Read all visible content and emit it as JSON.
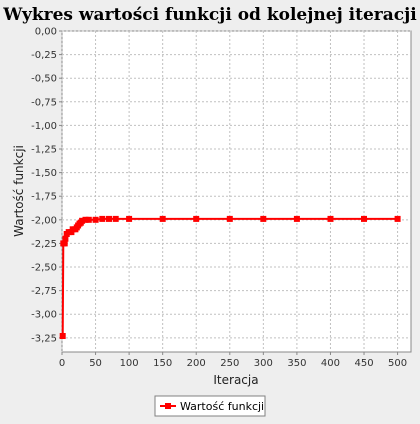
{
  "chart_data": {
    "type": "line",
    "title": "Wykres wartości funkcji od kolejnej iteracji",
    "xlabel": "Iteracja",
    "ylabel": "Wartość funkcji",
    "xlim": [
      0,
      520
    ],
    "ylim": [
      -3.4,
      0
    ],
    "x_ticks": [
      "0",
      "50",
      "100",
      "150",
      "200",
      "250",
      "300",
      "350",
      "400",
      "450",
      "500"
    ],
    "y_ticks": [
      "0,00",
      "-0,25",
      "-0,50",
      "-0,75",
      "-1,00",
      "-1,25",
      "-1,50",
      "-1,75",
      "-2,00",
      "-2,25",
      "-2,50",
      "-2,75",
      "-3,00",
      "-3,25"
    ],
    "grid": true,
    "legend": "bottom-center",
    "color": "#ff0000",
    "series": [
      {
        "name": "Wartość funkcji",
        "points": [
          [
            1,
            -3.23
          ],
          [
            2,
            -2.25
          ],
          [
            4,
            -2.25
          ],
          [
            5,
            -2.2
          ],
          [
            7,
            -2.15
          ],
          [
            10,
            -2.13
          ],
          [
            14,
            -2.13
          ],
          [
            16,
            -2.1
          ],
          [
            20,
            -2.1
          ],
          [
            22,
            -2.08
          ],
          [
            24,
            -2.06
          ],
          [
            26,
            -2.04
          ],
          [
            28,
            -2.03
          ],
          [
            30,
            -2.01
          ],
          [
            35,
            -2.0
          ],
          [
            40,
            -2.0
          ],
          [
            50,
            -2.0
          ],
          [
            60,
            -1.99
          ],
          [
            70,
            -1.99
          ],
          [
            80,
            -1.99
          ],
          [
            100,
            -1.99
          ],
          [
            150,
            -1.99
          ],
          [
            200,
            -1.99
          ],
          [
            250,
            -1.99
          ],
          [
            300,
            -1.99
          ],
          [
            350,
            -1.99
          ],
          [
            400,
            -1.99
          ],
          [
            450,
            -1.99
          ],
          [
            500,
            -1.99
          ]
        ]
      }
    ]
  }
}
